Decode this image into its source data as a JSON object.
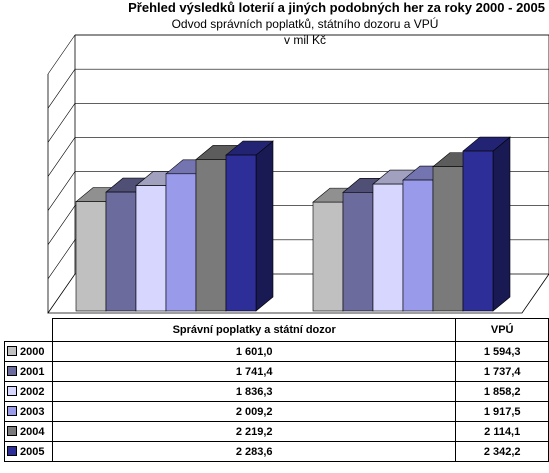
{
  "title": "Přehled výsledků loterií a jiných podobných her za roky 2000 - 2005",
  "subtitle": "Odvod správních poplatků, státního dozoru a VPÚ",
  "unit": "v mil Kč",
  "colors": {
    "background": "#ffffff",
    "grid": "#000000",
    "series": [
      "#c0c0c0",
      "#6b6b9e",
      "#d6d6ff",
      "#9a9aea",
      "#7a7a7a",
      "#2e2e99"
    ]
  },
  "chart_data": {
    "type": "bar",
    "categories": [
      "Správní poplatky a státní dozor",
      "VPÚ"
    ],
    "series": [
      {
        "name": "2000",
        "values": [
          1601.0,
          1594.3
        ],
        "labels": [
          "1 601,0",
          "1 594,3"
        ]
      },
      {
        "name": "2001",
        "values": [
          1741.4,
          1737.4
        ],
        "labels": [
          "1 741,4",
          "1 737,4"
        ]
      },
      {
        "name": "2002",
        "values": [
          1836.3,
          1858.2
        ],
        "labels": [
          "1 836,3",
          "1 858,2"
        ]
      },
      {
        "name": "2003",
        "values": [
          2009.2,
          1917.5
        ],
        "labels": [
          "2 009,2",
          "1 917,5"
        ]
      },
      {
        "name": "2004",
        "values": [
          2219.2,
          2114.1
        ],
        "labels": [
          "2 219,2",
          "2 114,1"
        ]
      },
      {
        "name": "2005",
        "values": [
          2283.6,
          2342.2
        ],
        "labels": [
          "2 283,6",
          "2 342,2"
        ]
      }
    ],
    "ylim": [
      0,
      3500
    ],
    "grid": true,
    "three_d": true,
    "legend": "data-table"
  }
}
